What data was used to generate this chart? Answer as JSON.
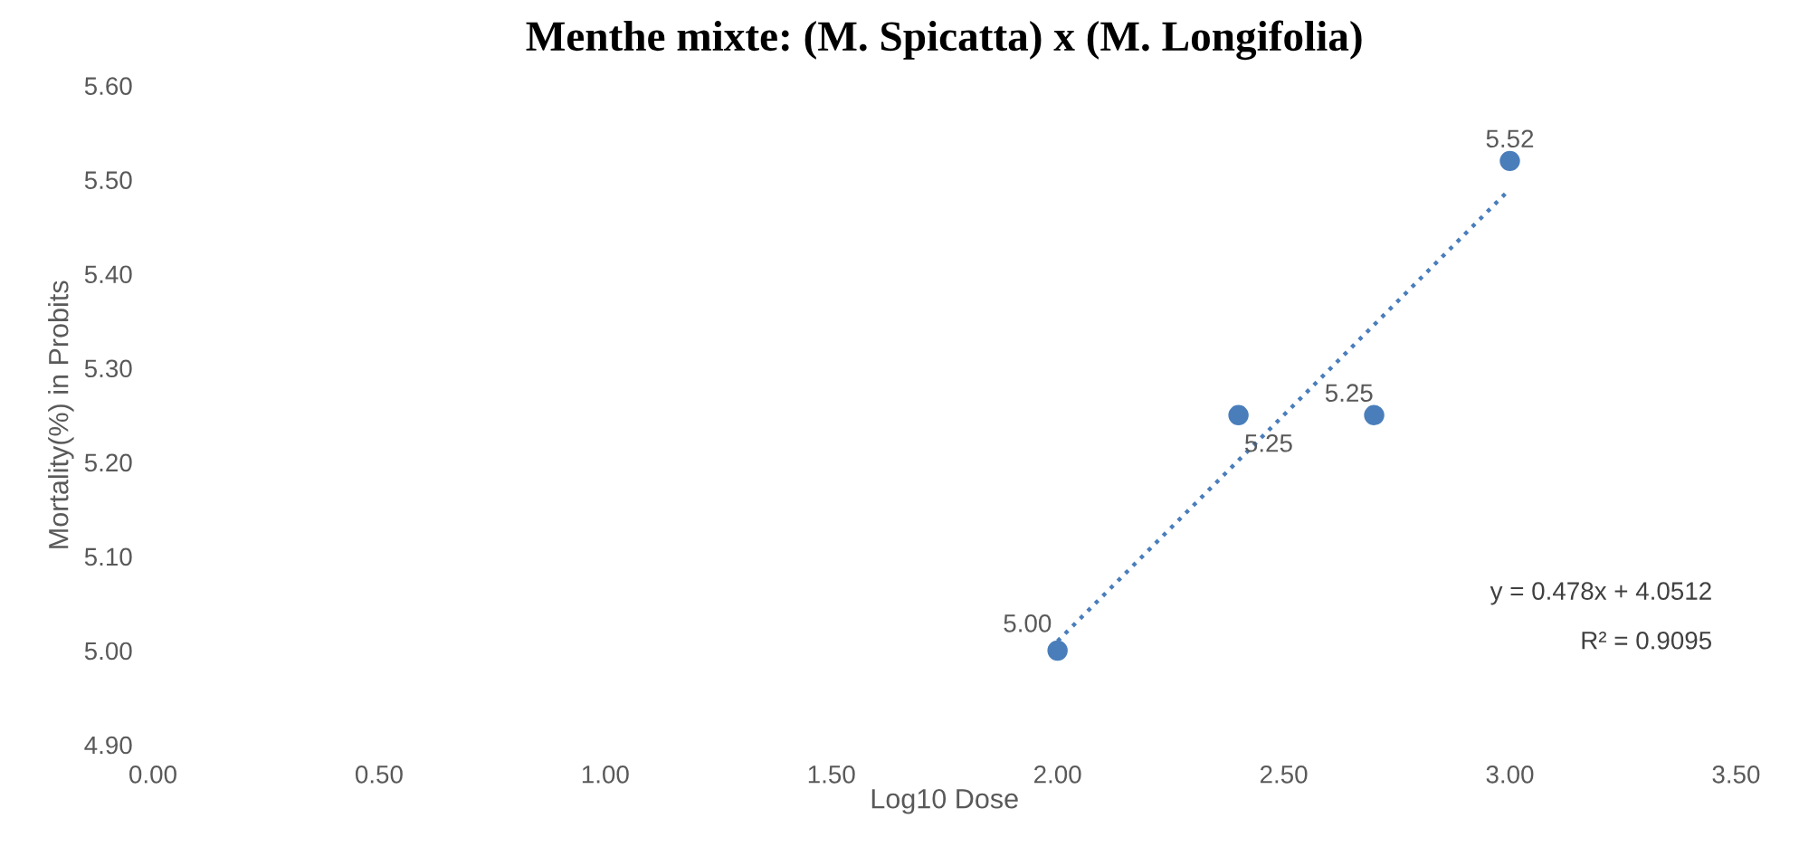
{
  "chart_data": {
    "type": "scatter",
    "title": "Menthe mixte: (M. Spicatta) x (M. Longifolia)",
    "xlabel": "Log10 Dose",
    "ylabel": "Mortality(%) in Probits",
    "series": [
      {
        "color": "#4a7ebb",
        "x": [
          2.0,
          2.4,
          2.7,
          3.0
        ],
        "values": [
          5.0,
          5.25,
          5.25,
          5.52
        ],
        "value_labels": [
          "5.00",
          "5.25",
          "5.25",
          "5.52"
        ],
        "marker": "circle"
      },
      {
        "type": "line",
        "color": "#4a7ebb",
        "x": [
          2.0,
          3.0
        ],
        "values": [
          5.01,
          5.49
        ],
        "line_style": "dotted",
        "marker": "none"
      }
    ],
    "annotations": [
      "y = 0.478x + 4.0512",
      "R² = 0.9095"
    ],
    "xlim": [
      0.0,
      3.5
    ],
    "xticks": [
      {
        "value": 0,
        "label": "0.00"
      },
      {
        "value": 0.5,
        "label": "0.50"
      },
      {
        "value": 1,
        "label": "1.00"
      },
      {
        "value": 1.5,
        "label": "1.50"
      },
      {
        "value": 2,
        "label": "2.00"
      },
      {
        "value": 2.5,
        "label": "2.50"
      },
      {
        "value": 3,
        "label": "3.00"
      },
      {
        "value": 3.5,
        "label": "3.50"
      }
    ],
    "ylim": [
      4.9,
      5.6
    ],
    "yticks": [
      {
        "value": 4.9,
        "label": "4.90"
      },
      {
        "value": 5.0,
        "label": "5.00"
      },
      {
        "value": 5.1,
        "label": "5.10"
      },
      {
        "value": 5.2,
        "label": "5.20"
      },
      {
        "value": 5.3,
        "label": "5.30"
      },
      {
        "value": 5.4,
        "label": "5.40"
      },
      {
        "value": 5.5,
        "label": "5.50"
      },
      {
        "value": 5.6,
        "label": "5.60"
      }
    ],
    "grid": false,
    "legend": false
  }
}
